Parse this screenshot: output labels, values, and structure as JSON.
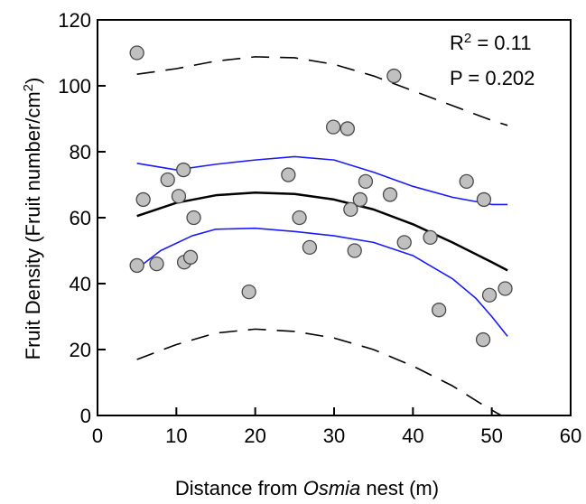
{
  "chart_data": {
    "type": "scatter",
    "xlim": [
      0,
      60
    ],
    "ylim": [
      0,
      120
    ],
    "x_ticks": [
      "0",
      "10",
      "20",
      "30",
      "40",
      "50",
      "60"
    ],
    "y_ticks": [
      "0",
      "20",
      "40",
      "60",
      "80",
      "100",
      "120"
    ],
    "xlabel": {
      "prefix": "Distance from ",
      "italic": "Osmia",
      "suffix": " nest (m)"
    },
    "ylabel": {
      "prefix": "Fruit Density (Fruit number/cm",
      "sup": "2",
      "suffix": ")"
    },
    "annotations": {
      "r2_label": "R",
      "r2_sup": "2",
      "r2_value": " = 0.11",
      "p_text": "P = 0.202"
    },
    "grid": false,
    "points": [
      {
        "x": 5.0,
        "y": 110
      },
      {
        "x": 5.0,
        "y": 45.5
      },
      {
        "x": 5.8,
        "y": 65.5
      },
      {
        "x": 7.5,
        "y": 46
      },
      {
        "x": 8.9,
        "y": 71.5
      },
      {
        "x": 10.3,
        "y": 66.5
      },
      {
        "x": 10.9,
        "y": 74.5
      },
      {
        "x": 11.0,
        "y": 46.5
      },
      {
        "x": 11.8,
        "y": 48
      },
      {
        "x": 12.2,
        "y": 60
      },
      {
        "x": 19.2,
        "y": 37.5
      },
      {
        "x": 24.2,
        "y": 73
      },
      {
        "x": 25.6,
        "y": 60
      },
      {
        "x": 26.9,
        "y": 51
      },
      {
        "x": 29.9,
        "y": 87.5
      },
      {
        "x": 31.7,
        "y": 87
      },
      {
        "x": 32.1,
        "y": 62.5
      },
      {
        "x": 32.6,
        "y": 50
      },
      {
        "x": 33.3,
        "y": 65.5
      },
      {
        "x": 34.0,
        "y": 71
      },
      {
        "x": 37.1,
        "y": 67
      },
      {
        "x": 37.6,
        "y": 103
      },
      {
        "x": 38.9,
        "y": 52.5
      },
      {
        "x": 42.2,
        "y": 54
      },
      {
        "x": 43.3,
        "y": 32
      },
      {
        "x": 46.8,
        "y": 71
      },
      {
        "x": 48.9,
        "y": 23
      },
      {
        "x": 49.0,
        "y": 65.5
      },
      {
        "x": 49.7,
        "y": 36.5
      },
      {
        "x": 51.7,
        "y": 38.5
      }
    ],
    "lines": [
      {
        "role": "fit",
        "color": "#000000",
        "style": "solid",
        "points": [
          [
            5,
            60.5
          ],
          [
            10,
            64.5
          ],
          [
            15,
            66.8
          ],
          [
            20,
            67.6
          ],
          [
            25,
            67.2
          ],
          [
            30,
            65.5
          ],
          [
            35,
            62.5
          ],
          [
            40,
            58
          ],
          [
            45,
            52.5
          ],
          [
            50,
            46.5
          ],
          [
            52,
            44
          ]
        ]
      },
      {
        "role": "confidence-upper",
        "color": "#1a1aff",
        "style": "solid",
        "points": [
          [
            5,
            76.5
          ],
          [
            10,
            74.5
          ],
          [
            15,
            76.2
          ],
          [
            20,
            77.5
          ],
          [
            25,
            78.5
          ],
          [
            30,
            77.5
          ],
          [
            35,
            73.8
          ],
          [
            40,
            69.5
          ],
          [
            45,
            66.2
          ],
          [
            50,
            64
          ],
          [
            52,
            64
          ]
        ]
      },
      {
        "role": "confidence-lower",
        "color": "#1a1aff",
        "style": "solid",
        "points": [
          [
            5,
            44.5
          ],
          [
            8,
            50
          ],
          [
            12,
            54.5
          ],
          [
            15,
            56.5
          ],
          [
            20,
            56.8
          ],
          [
            25,
            55.8
          ],
          [
            30,
            54.5
          ],
          [
            35,
            52.5
          ],
          [
            40,
            48.5
          ],
          [
            45,
            41.5
          ],
          [
            48,
            35.5
          ],
          [
            50,
            30
          ],
          [
            52,
            24
          ]
        ]
      },
      {
        "role": "prediction-upper",
        "color": "#000000",
        "style": "dashed",
        "points": [
          [
            5,
            103.5
          ],
          [
            10,
            105.2
          ],
          [
            15,
            107.5
          ],
          [
            20,
            108.8
          ],
          [
            25,
            108.5
          ],
          [
            30,
            106.5
          ],
          [
            35,
            103
          ],
          [
            40,
            98.5
          ],
          [
            45,
            94
          ],
          [
            50,
            89.5
          ],
          [
            52,
            88
          ]
        ]
      },
      {
        "role": "prediction-lower",
        "color": "#000000",
        "style": "dashed",
        "points": [
          [
            5,
            17
          ],
          [
            10,
            21.5
          ],
          [
            15,
            25
          ],
          [
            20,
            26.2
          ],
          [
            25,
            25.5
          ],
          [
            30,
            23.5
          ],
          [
            35,
            20
          ],
          [
            40,
            15
          ],
          [
            45,
            9
          ],
          [
            49,
            3
          ],
          [
            51.2,
            0
          ]
        ]
      }
    ],
    "marker_fill": "#c0c0c0",
    "marker_stroke": "#4a4a4a"
  }
}
